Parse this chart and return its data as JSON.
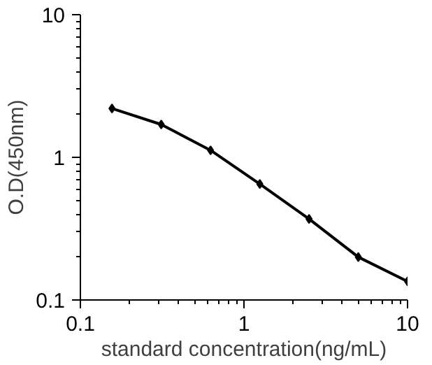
{
  "chart_data": {
    "type": "line",
    "xlabel": "standard concentration(ng/mL)",
    "ylabel": "O.D(450nm)",
    "x": [
      0.156,
      0.312,
      0.625,
      1.25,
      2.5,
      5,
      10
    ],
    "series": [
      {
        "color": "#000000",
        "values": [
          2.2,
          1.7,
          1.12,
          0.65,
          0.37,
          0.2,
          0.135
        ]
      }
    ],
    "log": "xy",
    "xlim": [
      0.1,
      10
    ],
    "ylim": [
      0.1,
      10
    ],
    "xticks": [
      0.1,
      1,
      10
    ],
    "yticks": [
      0.1,
      1,
      10
    ],
    "marker": "diamond",
    "line_style": "solid",
    "grid": false
  }
}
